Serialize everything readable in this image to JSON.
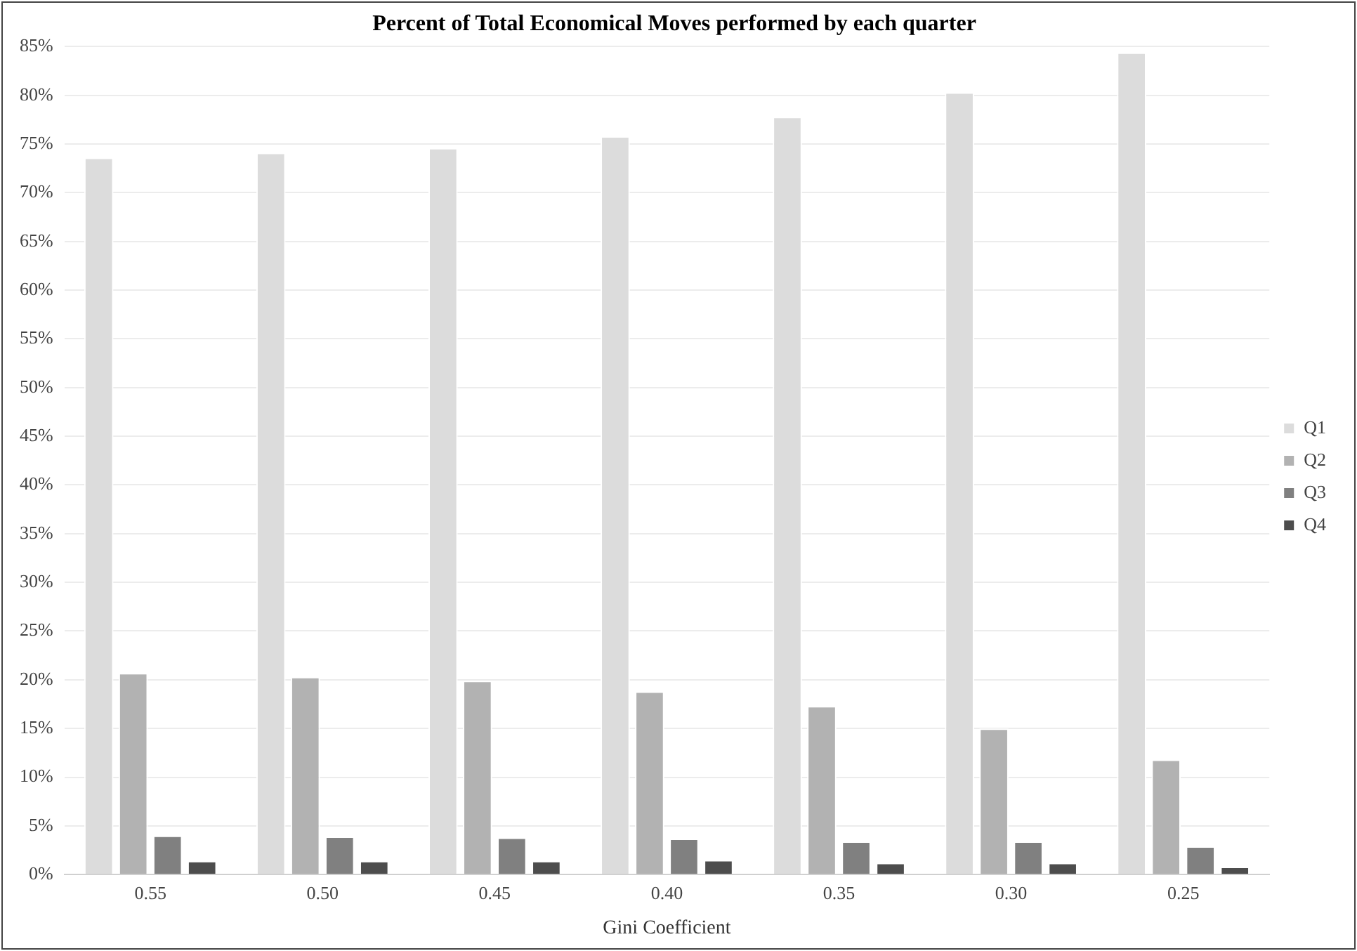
{
  "chart_data": {
    "type": "bar",
    "title": "Percent of Total Economical Moves performed by each quarter",
    "xlabel": "Gini Coefficient",
    "categories": [
      "0.55",
      "0.50",
      "0.45",
      "0.40",
      "0.35",
      "0.30",
      "0.25"
    ],
    "series": [
      {
        "name": "Q1",
        "color": "#dcdcdc",
        "values": [
          73.6,
          74.1,
          74.6,
          75.8,
          77.8,
          80.3,
          84.4
        ]
      },
      {
        "name": "Q2",
        "color": "#b2b2b2",
        "values": [
          20.7,
          20.3,
          19.9,
          18.8,
          17.3,
          15.0,
          11.8
        ]
      },
      {
        "name": "Q3",
        "color": "#808080",
        "values": [
          4.0,
          3.9,
          3.8,
          3.7,
          3.4,
          3.4,
          2.9
        ]
      },
      {
        "name": "Q4",
        "color": "#4d4d4d",
        "values": [
          1.4,
          1.4,
          1.4,
          1.5,
          1.2,
          1.2,
          0.8
        ]
      }
    ],
    "ylim": [
      0,
      85
    ],
    "yticks": [
      {
        "value": 0,
        "label": "0%"
      },
      {
        "value": 5,
        "label": "5%"
      },
      {
        "value": 10,
        "label": "10%"
      },
      {
        "value": 15,
        "label": "15%"
      },
      {
        "value": 20,
        "label": "20%"
      },
      {
        "value": 25,
        "label": "25%"
      },
      {
        "value": 30,
        "label": "30%"
      },
      {
        "value": 35,
        "label": "35%"
      },
      {
        "value": 40,
        "label": "40%"
      },
      {
        "value": 45,
        "label": "45%"
      },
      {
        "value": 50,
        "label": "50%"
      },
      {
        "value": 55,
        "label": "55%"
      },
      {
        "value": 60,
        "label": "60%"
      },
      {
        "value": 65,
        "label": "65%"
      },
      {
        "value": 70,
        "label": "70%"
      },
      {
        "value": 75,
        "label": "75%"
      },
      {
        "value": 80,
        "label": "80%"
      },
      {
        "value": 85,
        "label": "85%"
      }
    ],
    "grid": "y",
    "legend": "right"
  }
}
